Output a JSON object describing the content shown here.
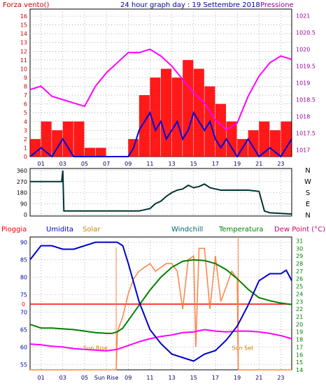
{
  "header": {
    "left_label": "Forza vento()",
    "title": "24 hour graph day : 19 Settembre 2018",
    "right_label": "Pressione"
  },
  "colors": {
    "wind": "#ff0000",
    "gust_line": "#0000dd",
    "pressure": "#ff00ff",
    "direction": "#003333",
    "rain": "#ff0000",
    "humidity": "#0000cc",
    "solar": "#ff8040",
    "windchill": "#006666",
    "temperature": "#008000",
    "dewpoint": "#ff00ff",
    "grid": "#808080",
    "left_axis": "#cc0000",
    "right_axis": "#990099",
    "bottom_left_axis": "#000099",
    "bottom_right_axis": "#008000"
  },
  "chart_data": [
    {
      "type": "line",
      "name": "wind-pressure",
      "x_ticks": [
        "01",
        "03",
        "05",
        "07",
        "09",
        "11",
        "13",
        "15",
        "17",
        "19",
        "21",
        "23"
      ],
      "y_left_ticks": [
        "0",
        "1",
        "2",
        "3",
        "4",
        "5",
        "6",
        "7",
        "8",
        "9",
        "10",
        "11",
        "12",
        "13",
        "14",
        "15",
        "16"
      ],
      "y_right_ticks": [
        "1017",
        "1017.5",
        "1018",
        "1018.5",
        "1019",
        "1019.5",
        "1020",
        "1020.5",
        "1021"
      ],
      "ylim_left": [
        0,
        16.8
      ],
      "ylim_right": [
        1016.8,
        1021.2
      ],
      "xlim": [
        0,
        24
      ],
      "series": [
        {
          "name": "Forza vento",
          "axis": "left",
          "style": "bars",
          "x": [
            0,
            1,
            2,
            3,
            4,
            5,
            6,
            7,
            8,
            9,
            10,
            11,
            12,
            13,
            14,
            15,
            16,
            17,
            18,
            19,
            20,
            21,
            22,
            23,
            24
          ],
          "values": [
            2,
            4,
            3,
            4,
            4,
            1,
            1,
            0,
            0,
            2,
            7,
            9,
            10,
            9,
            11,
            10,
            8,
            6,
            4,
            2,
            3,
            4,
            3,
            4,
            5
          ]
        },
        {
          "axis": "left",
          "style": "line",
          "x": [
            0,
            0.5,
            1,
            1.5,
            2,
            2.5,
            3,
            3.5,
            4,
            5,
            6,
            7,
            8,
            9,
            9.5,
            10,
            10.5,
            11,
            11.5,
            12,
            12.5,
            13,
            13.5,
            14,
            14.5,
            15,
            15.5,
            16,
            16.5,
            17,
            17.5,
            18,
            18.5,
            19,
            19.5,
            20,
            20.5,
            21,
            22,
            23,
            23.5,
            24
          ],
          "values": [
            0,
            0.5,
            1,
            0.5,
            0,
            1,
            2,
            1,
            0,
            0,
            0,
            0,
            0,
            0,
            1,
            3,
            4,
            5,
            3,
            4,
            2,
            3,
            4,
            2,
            3,
            5,
            4,
            3,
            4,
            2,
            1,
            2,
            1,
            0,
            1,
            2,
            1,
            0,
            1,
            0,
            1,
            2
          ]
        },
        {
          "name": "Pressione",
          "axis": "right",
          "style": "line",
          "x": [
            0,
            1,
            2,
            3,
            4,
            5,
            6,
            7,
            8,
            9,
            10,
            11,
            12,
            13,
            14,
            15,
            16,
            17,
            18,
            19,
            20,
            21,
            22,
            23,
            24
          ],
          "values": [
            1018.8,
            1018.9,
            1018.6,
            1018.5,
            1018.4,
            1018.3,
            1018.9,
            1019.3,
            1019.6,
            1019.9,
            1019.9,
            1020.0,
            1019.8,
            1019.5,
            1019.1,
            1018.7,
            1018.4,
            1017.9,
            1017.6,
            1017.8,
            1018.6,
            1019.2,
            1019.6,
            1019.8,
            1019.7
          ]
        }
      ]
    },
    {
      "type": "line",
      "name": "wind-direction",
      "y_ticks": [
        "0",
        "90",
        "180",
        "270",
        "360"
      ],
      "ylim": [
        0,
        360
      ],
      "xlim": [
        0,
        24
      ],
      "compass_labels": [
        "N",
        "W",
        "S",
        "E",
        "N"
      ],
      "series": [
        {
          "axis": "left",
          "x": [
            0,
            1,
            2,
            2.9,
            3,
            3.1,
            3.5,
            4,
            5,
            6,
            7,
            8,
            9,
            10,
            11,
            11.5,
            12,
            12.5,
            13,
            13.5,
            14,
            14.5,
            15,
            15.5,
            16,
            16.5,
            17,
            17.5,
            18,
            18.5,
            19,
            20,
            21,
            21.5,
            22,
            23,
            24
          ],
          "values": [
            270,
            270,
            270,
            270,
            360,
            30,
            30,
            30,
            30,
            30,
            30,
            30,
            30,
            30,
            50,
            90,
            110,
            150,
            180,
            200,
            210,
            240,
            220,
            230,
            250,
            220,
            210,
            200,
            200,
            200,
            200,
            200,
            190,
            30,
            15,
            10,
            5
          ]
        }
      ]
    },
    {
      "type": "line",
      "name": "humidity-temperature",
      "labels": [
        "Pioggia",
        "Umidita",
        "Solar",
        "Windchill",
        "Temperatura",
        "Dew Point (°C)"
      ],
      "x_ticks": [
        "01",
        "03",
        "05",
        "Sun Rise",
        "09",
        "11",
        "13",
        "15",
        "17",
        "19",
        "21",
        "23"
      ],
      "y_left_ticks": [
        "55",
        "60",
        "65",
        "70",
        "75",
        "80",
        "85",
        "90"
      ],
      "y_right_ticks": [
        "14",
        "15",
        "16",
        "17",
        "18",
        "19",
        "20",
        "21",
        "22",
        "23",
        "24",
        "25",
        "26",
        "27",
        "28",
        "29",
        "30",
        "31"
      ],
      "ylim_left": [
        53.5,
        91.5
      ],
      "ylim_right": [
        14,
        31.5
      ],
      "xlim": [
        0,
        24
      ],
      "rain_zero_label": "0",
      "annotations": [
        "Sun Rise",
        "Sun Set"
      ],
      "series": [
        {
          "name": "Umidita",
          "axis": "left",
          "x": [
            0,
            0.5,
            1,
            2,
            3,
            4,
            5,
            6,
            7,
            8,
            8.5,
            9,
            10,
            11,
            12,
            13,
            14,
            15,
            16,
            17,
            18,
            19,
            20,
            21,
            22,
            23,
            23.5,
            24
          ],
          "values": [
            85,
            87,
            89,
            89,
            88,
            88,
            89,
            90,
            90,
            90,
            89,
            84,
            73,
            65,
            61,
            58,
            57,
            56,
            58,
            59,
            62,
            66,
            72,
            79,
            81,
            81,
            82,
            79
          ]
        },
        {
          "name": "Temperatura",
          "axis": "right",
          "x": [
            0,
            1,
            2,
            3,
            4,
            5,
            6,
            7,
            7.5,
            8,
            8.5,
            9,
            10,
            11,
            12,
            13,
            14,
            15,
            16,
            17,
            18,
            19,
            20,
            21,
            22,
            23,
            24
          ],
          "values": [
            20,
            19.5,
            19.5,
            19.4,
            19.3,
            19.1,
            18.9,
            18.8,
            18.8,
            19.0,
            19.5,
            20.5,
            22.5,
            24.5,
            26.2,
            27.5,
            28.3,
            28.5,
            28.4,
            28.0,
            27.2,
            26.0,
            24.6,
            23.5,
            23.1,
            22.8,
            22.6
          ]
        },
        {
          "name": "Dew Point (°C)",
          "axis": "right",
          "x": [
            0,
            1,
            2,
            3,
            4,
            5,
            6,
            7,
            8,
            9,
            10,
            11,
            12,
            13,
            14,
            15,
            16,
            17,
            18,
            19,
            20,
            21,
            22,
            23,
            24
          ],
          "values": [
            17.4,
            17.3,
            17.1,
            17.0,
            16.8,
            16.7,
            16.6,
            16.5,
            16.7,
            17.2,
            17.7,
            18.1,
            18.4,
            18.6,
            18.9,
            19.0,
            19.3,
            19.1,
            19.0,
            19.1,
            19.1,
            19.0,
            18.8,
            18.5,
            18.1
          ]
        },
        {
          "name": "Solar",
          "axis": "right",
          "x": [
            0,
            7,
            7.9,
            8,
            8.5,
            9,
            9.5,
            10,
            10.5,
            11,
            11.5,
            12,
            12.5,
            13,
            13.5,
            14,
            14.5,
            15,
            15.2,
            15.5,
            16,
            16.5,
            17,
            17.5,
            18,
            18.5,
            19,
            19.1,
            24
          ],
          "values": [
            14,
            14,
            14,
            19,
            21,
            24,
            26,
            27,
            27.5,
            28,
            27,
            27.5,
            28,
            28,
            27,
            22,
            28.5,
            29,
            17,
            30,
            30,
            22,
            29,
            23,
            25,
            27,
            26,
            14,
            14
          ]
        }
      ]
    }
  ]
}
